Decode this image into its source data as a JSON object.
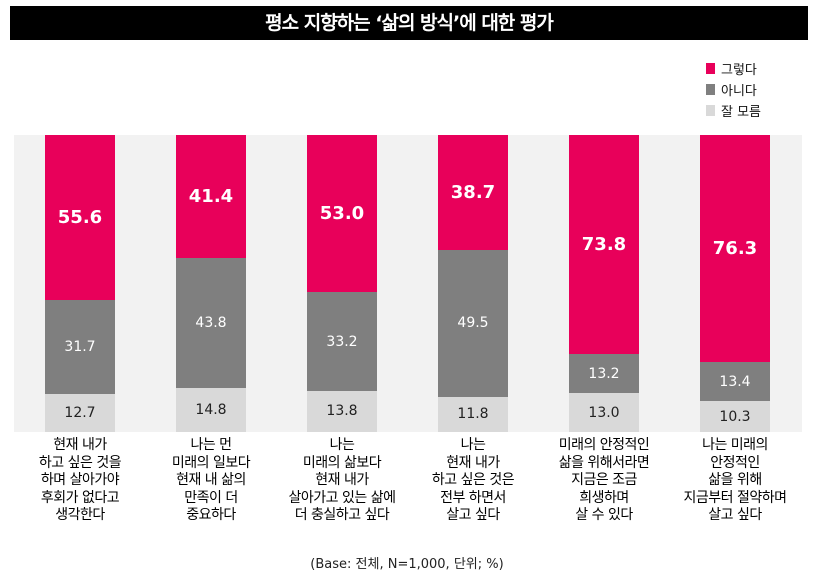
{
  "chart_data": {
    "type": "bar",
    "stacked": true,
    "title": "평소 지향하는 ‘삶의 방식’에 대한 평가",
    "categories": [
      "현재 내가\n하고 싶은 것을\n하며 살아가야\n후회가 없다고\n생각한다",
      "나는 먼\n미래의 일보다\n현재 내 삶의\n만족이 더\n중요하다",
      "나는\n미래의 삶보다\n현재 내가\n살아가고 있는 삶에\n더 충실하고 싶다",
      "나는\n현재 내가\n하고 싶은 것은\n전부 하면서\n살고 싶다",
      "미래의 안정적인\n삶을 위해서라면\n지금은 조금\n희생하며\n살 수 있다",
      "나는 미래의\n안정적인\n삶을 위해\n지금부터 절약하며\n살고 싶다"
    ],
    "series": [
      {
        "name": "그렇다",
        "color": "#e8005a",
        "values": [
          55.6,
          41.4,
          53.0,
          38.7,
          73.8,
          76.3
        ],
        "labels": [
          "55.6",
          "41.4",
          "53.0",
          "38.7",
          "73.8",
          "76.3"
        ]
      },
      {
        "name": "아니다",
        "color": "#7f7f7f",
        "values": [
          31.7,
          43.8,
          33.2,
          49.5,
          13.2,
          13.4
        ],
        "labels": [
          "31.7",
          "43.8",
          "33.2",
          "49.5",
          "13.2",
          "13.4"
        ]
      },
      {
        "name": "잘 모름",
        "color": "#d9d9d9",
        "values": [
          12.7,
          14.8,
          13.8,
          11.8,
          13.0,
          10.3
        ],
        "labels": [
          "12.7",
          "14.8",
          "13.8",
          "11.8",
          "13.0",
          "10.3"
        ]
      }
    ],
    "ylim": [
      0,
      100
    ],
    "legend": "top-right",
    "note": "(Base: 전체, N=1,000, 단위; %)"
  }
}
